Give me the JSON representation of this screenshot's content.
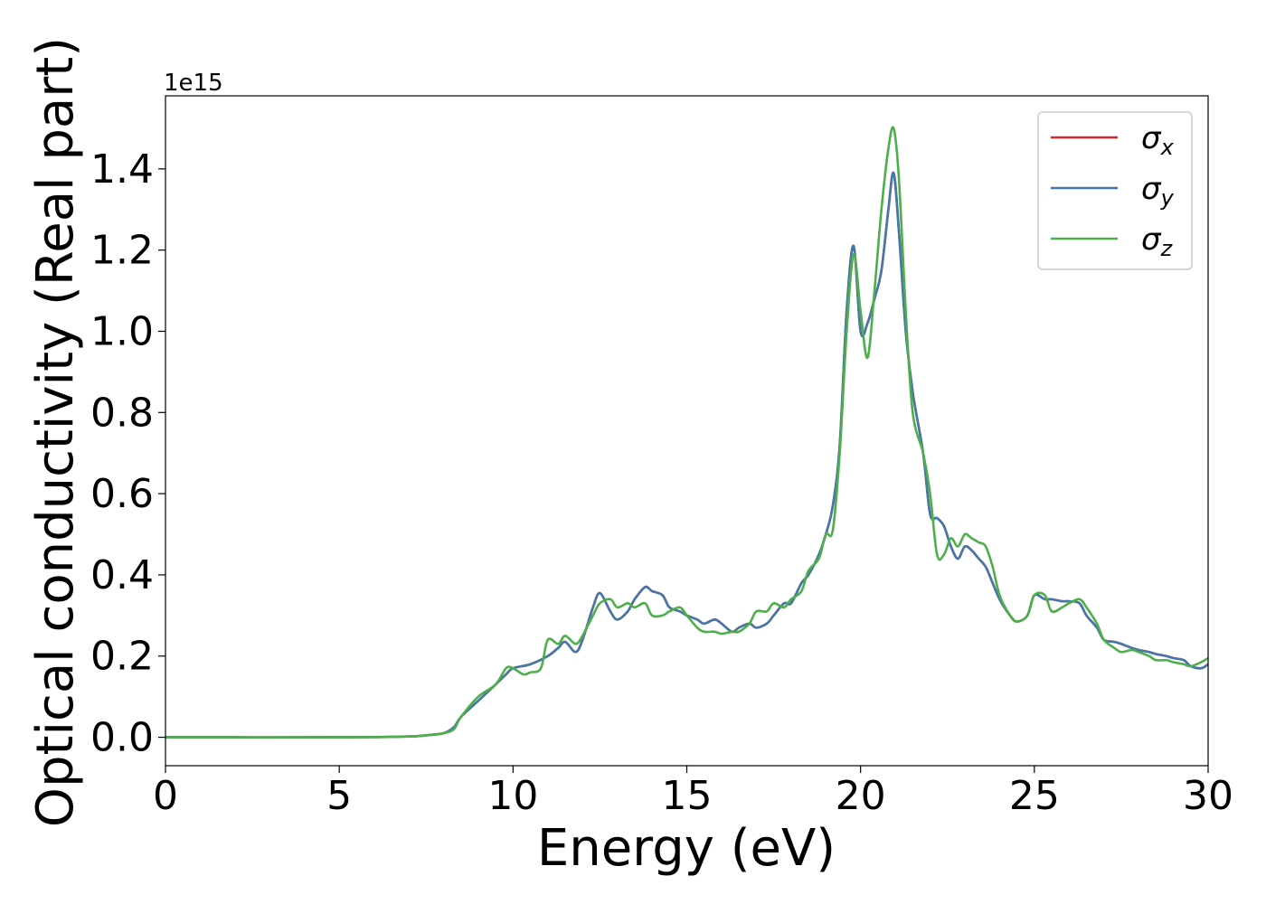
{
  "chart_data": {
    "type": "line",
    "xlabel": "Energy (eV)",
    "ylabel": "Optical conductivity (Real part)",
    "y_offset_label": "1e15",
    "xlim": [
      0,
      30
    ],
    "ylim": [
      -0.07,
      1.58
    ],
    "x_ticks": [
      0,
      5,
      10,
      15,
      20,
      25,
      30
    ],
    "x_tick_labels": [
      "0",
      "5",
      "10",
      "15",
      "20",
      "25",
      "30"
    ],
    "y_ticks": [
      0.0,
      0.2,
      0.4,
      0.6,
      0.8,
      1.0,
      1.2,
      1.4
    ],
    "y_tick_labels": [
      "0.0",
      "0.2",
      "0.4",
      "0.6",
      "0.8",
      "1.0",
      "1.2",
      "1.4"
    ],
    "grid": false,
    "legend_position": "top-right",
    "series": [
      {
        "name": "σ",
        "subscript": "x",
        "color": "#d62728",
        "x": [
          0,
          5,
          7,
          7.5,
          8,
          8.3,
          8.5,
          9,
          9.5,
          9.8,
          10,
          10.5,
          11,
          11.3,
          11.5,
          11.8,
          12,
          12.3,
          12.5,
          12.8,
          13,
          13.3,
          13.5,
          13.8,
          14,
          14.3,
          14.5,
          14.8,
          15,
          15.3,
          15.5,
          15.8,
          16,
          16.3,
          16.5,
          16.8,
          17,
          17.3,
          17.5,
          17.8,
          18,
          18.3,
          18.5,
          18.8,
          19,
          19.2,
          19.4,
          19.6,
          19.8,
          20,
          20.2,
          20.4,
          20.6,
          20.8,
          20.95,
          21.1,
          21.3,
          21.5,
          21.8,
          22,
          22.2,
          22.4,
          22.6,
          22.8,
          23,
          23.2,
          23.4,
          23.6,
          23.8,
          24,
          24.3,
          24.5,
          24.8,
          25,
          25.3,
          25.5,
          25.8,
          26,
          26.3,
          26.5,
          26.8,
          27,
          27.3,
          27.5,
          27.8,
          28,
          28.3,
          28.5,
          28.8,
          29,
          29.3,
          29.5,
          29.8,
          30
        ],
        "y": [
          0,
          0,
          0.002,
          0.005,
          0.01,
          0.025,
          0.05,
          0.09,
          0.13,
          0.155,
          0.17,
          0.18,
          0.2,
          0.22,
          0.235,
          0.21,
          0.24,
          0.32,
          0.355,
          0.31,
          0.29,
          0.31,
          0.34,
          0.37,
          0.36,
          0.35,
          0.32,
          0.31,
          0.3,
          0.29,
          0.28,
          0.29,
          0.28,
          0.26,
          0.27,
          0.28,
          0.27,
          0.28,
          0.3,
          0.33,
          0.33,
          0.38,
          0.4,
          0.45,
          0.5,
          0.57,
          0.72,
          1.05,
          1.21,
          1.0,
          1.02,
          1.08,
          1.15,
          1.3,
          1.39,
          1.25,
          1.0,
          0.85,
          0.7,
          0.55,
          0.54,
          0.52,
          0.47,
          0.44,
          0.47,
          0.46,
          0.44,
          0.42,
          0.38,
          0.34,
          0.3,
          0.285,
          0.3,
          0.35,
          0.34,
          0.34,
          0.335,
          0.335,
          0.33,
          0.3,
          0.27,
          0.24,
          0.235,
          0.23,
          0.22,
          0.215,
          0.21,
          0.205,
          0.2,
          0.195,
          0.19,
          0.175,
          0.17,
          0.18
        ]
      },
      {
        "name": "σ",
        "subscript": "y",
        "color": "#4477aa",
        "x": [
          0,
          5,
          7,
          7.5,
          8,
          8.3,
          8.5,
          9,
          9.5,
          9.8,
          10,
          10.5,
          11,
          11.3,
          11.5,
          11.8,
          12,
          12.3,
          12.5,
          12.8,
          13,
          13.3,
          13.5,
          13.8,
          14,
          14.3,
          14.5,
          14.8,
          15,
          15.3,
          15.5,
          15.8,
          16,
          16.3,
          16.5,
          16.8,
          17,
          17.3,
          17.5,
          17.8,
          18,
          18.3,
          18.5,
          18.8,
          19,
          19.2,
          19.4,
          19.6,
          19.8,
          20,
          20.2,
          20.4,
          20.6,
          20.8,
          20.95,
          21.1,
          21.3,
          21.5,
          21.8,
          22,
          22.2,
          22.4,
          22.6,
          22.8,
          23,
          23.2,
          23.4,
          23.6,
          23.8,
          24,
          24.3,
          24.5,
          24.8,
          25,
          25.3,
          25.5,
          25.8,
          26,
          26.3,
          26.5,
          26.8,
          27,
          27.3,
          27.5,
          27.8,
          28,
          28.3,
          28.5,
          28.8,
          29,
          29.3,
          29.5,
          29.8,
          30
        ],
        "y": [
          0,
          0,
          0.002,
          0.005,
          0.01,
          0.025,
          0.05,
          0.09,
          0.13,
          0.155,
          0.17,
          0.18,
          0.2,
          0.22,
          0.235,
          0.21,
          0.24,
          0.32,
          0.355,
          0.31,
          0.29,
          0.31,
          0.34,
          0.37,
          0.36,
          0.35,
          0.32,
          0.31,
          0.3,
          0.29,
          0.28,
          0.29,
          0.28,
          0.26,
          0.27,
          0.28,
          0.27,
          0.28,
          0.3,
          0.33,
          0.33,
          0.38,
          0.4,
          0.45,
          0.5,
          0.57,
          0.72,
          1.05,
          1.21,
          1.0,
          1.02,
          1.08,
          1.15,
          1.3,
          1.39,
          1.25,
          1.0,
          0.85,
          0.7,
          0.55,
          0.54,
          0.52,
          0.47,
          0.44,
          0.47,
          0.46,
          0.44,
          0.42,
          0.38,
          0.34,
          0.3,
          0.285,
          0.3,
          0.35,
          0.34,
          0.34,
          0.335,
          0.335,
          0.33,
          0.3,
          0.27,
          0.24,
          0.235,
          0.23,
          0.22,
          0.215,
          0.21,
          0.205,
          0.2,
          0.195,
          0.19,
          0.175,
          0.17,
          0.18
        ]
      },
      {
        "name": "σ",
        "subscript": "z",
        "color": "#4daf4a",
        "x": [
          0,
          5,
          7,
          7.5,
          8,
          8.3,
          8.5,
          9,
          9.5,
          9.8,
          10,
          10.3,
          10.5,
          10.8,
          11,
          11.3,
          11.5,
          11.8,
          12,
          12.3,
          12.5,
          12.8,
          13,
          13.3,
          13.5,
          13.8,
          14,
          14.3,
          14.5,
          14.8,
          15,
          15.3,
          15.5,
          15.8,
          16,
          16.3,
          16.5,
          16.8,
          17,
          17.3,
          17.5,
          17.8,
          18,
          18.3,
          18.5,
          18.8,
          19,
          19.2,
          19.4,
          19.6,
          19.8,
          20,
          20.2,
          20.4,
          20.6,
          20.8,
          20.95,
          21.1,
          21.3,
          21.5,
          21.8,
          22,
          22.2,
          22.4,
          22.6,
          22.8,
          23,
          23.2,
          23.4,
          23.6,
          23.8,
          24,
          24.3,
          24.5,
          24.8,
          25,
          25.3,
          25.5,
          25.8,
          26,
          26.3,
          26.5,
          26.8,
          27,
          27.3,
          27.5,
          27.8,
          28,
          28.3,
          28.5,
          28.8,
          29,
          29.3,
          29.5,
          29.8,
          30
        ],
        "y": [
          0,
          0,
          0.002,
          0.005,
          0.01,
          0.02,
          0.05,
          0.1,
          0.13,
          0.17,
          0.17,
          0.155,
          0.16,
          0.17,
          0.24,
          0.23,
          0.25,
          0.23,
          0.25,
          0.3,
          0.33,
          0.34,
          0.32,
          0.33,
          0.32,
          0.33,
          0.3,
          0.3,
          0.31,
          0.32,
          0.3,
          0.27,
          0.26,
          0.26,
          0.255,
          0.26,
          0.26,
          0.28,
          0.31,
          0.31,
          0.33,
          0.32,
          0.34,
          0.36,
          0.41,
          0.44,
          0.5,
          0.51,
          0.7,
          1.0,
          1.19,
          1.05,
          0.935,
          1.1,
          1.3,
          1.45,
          1.5,
          1.38,
          1.05,
          0.8,
          0.7,
          0.6,
          0.45,
          0.45,
          0.49,
          0.47,
          0.5,
          0.49,
          0.48,
          0.47,
          0.42,
          0.35,
          0.3,
          0.285,
          0.3,
          0.35,
          0.35,
          0.31,
          0.32,
          0.33,
          0.34,
          0.32,
          0.28,
          0.24,
          0.22,
          0.21,
          0.215,
          0.21,
          0.2,
          0.19,
          0.19,
          0.185,
          0.18,
          0.175,
          0.185,
          0.195
        ]
      }
    ]
  }
}
